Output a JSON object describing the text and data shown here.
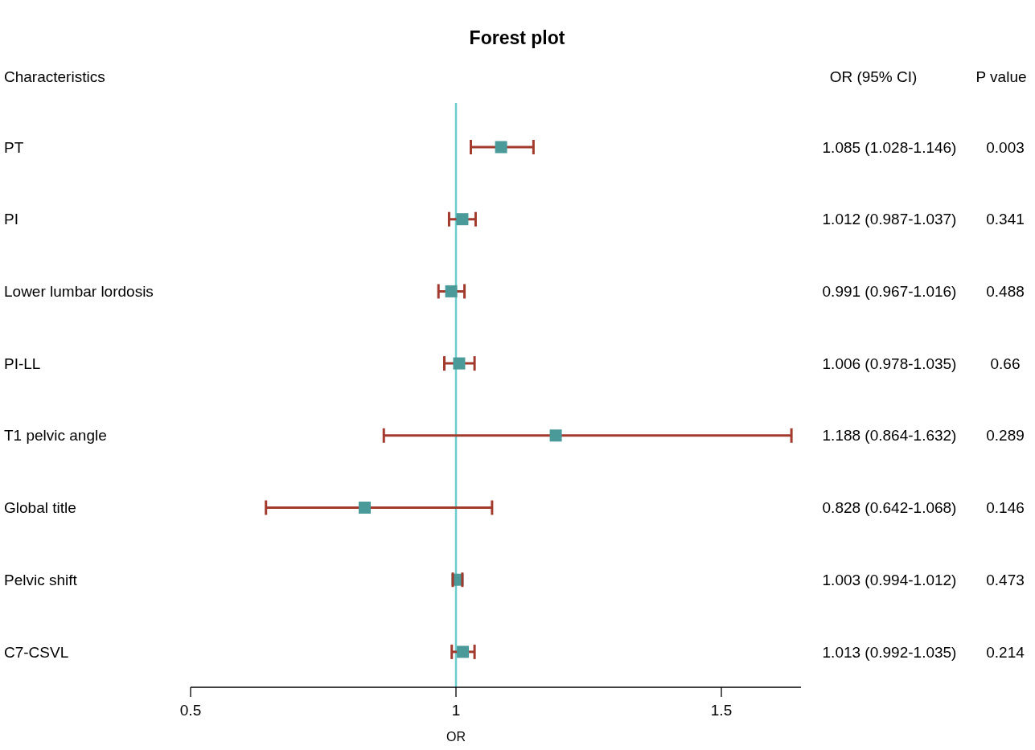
{
  "chart_data": {
    "type": "scatter",
    "orientation": "horizontal",
    "title": "Forest plot",
    "ylabel": "Characteristics",
    "xlabel": "OR",
    "categories": [
      "PT",
      "PI",
      "Lower lumbar lordosis",
      "PI-LL",
      "T1 pelvic angle",
      "Global title",
      "Pelvic shift",
      "C7-CSVL"
    ],
    "color": "#4a9a9a",
    "values": [
      1.085,
      1.012,
      0.991,
      1.006,
      1.188,
      0.828,
      1.003,
      1.013
    ],
    "errors": [
      [
        1.028,
        1.146
      ],
      [
        0.987,
        1.037
      ],
      [
        0.967,
        1.016
      ],
      [
        0.978,
        1.035
      ],
      [
        0.864,
        1.632
      ],
      [
        0.642,
        1.068
      ],
      [
        0.994,
        1.012
      ],
      [
        0.992,
        1.035
      ]
    ],
    "value_labels": [
      "1.085 (1.028-1.146)",
      "1.012 (0.987-1.037)",
      "0.991 (0.967-1.016)",
      "1.006 (0.978-1.035)",
      "1.188 (0.864-1.632)",
      "0.828 (0.642-1.068)",
      "1.003 (0.994-1.012)",
      "1.013 (0.992-1.035)"
    ],
    "marker": "square",
    "xlim": [
      0.5,
      1.65
    ],
    "xticks": [
      0.5,
      1,
      1.5
    ],
    "ref_lines": [
      {
        "axis": "x",
        "value": 1,
        "color": "#6ccccc"
      }
    ],
    "annotations": [
      "OR (95% CI)",
      "P value",
      "0.003",
      "0.341",
      "0.488",
      "0.66",
      "0.289",
      "0.146",
      "0.473",
      "0.214"
    ]
  }
}
